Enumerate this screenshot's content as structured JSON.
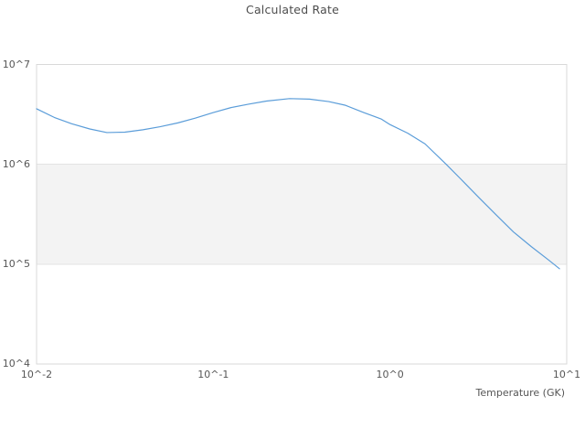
{
  "page": {
    "background": "#ffffff"
  },
  "chart_data": {
    "type": "line",
    "title": "Calculated Rate",
    "xlabel": "Temperature (GK)",
    "ylabel": "",
    "x_scale": "log",
    "y_scale": "log",
    "xlim": [
      0.01,
      10
    ],
    "ylim": [
      10000,
      10000000
    ],
    "grid": "horizontal-decade-lines",
    "legend": "none",
    "x_ticks": [
      {
        "label": "10^-2",
        "value": 0.01
      },
      {
        "label": "10^-1",
        "value": 0.1
      },
      {
        "label": "10^0",
        "value": 1
      },
      {
        "label": "10^1",
        "value": 10
      }
    ],
    "y_ticks": [
      {
        "label": "10^4",
        "value": 10000
      },
      {
        "label": "10^5",
        "value": 100000
      },
      {
        "label": "10^6",
        "value": 1000000
      },
      {
        "label": "10^7",
        "value": 10000000
      }
    ],
    "shaded_band": {
      "y_from": 100000,
      "y_to": 1000000,
      "fill": "#f3f3f3",
      "edge": "#e3e3e3"
    },
    "series": [
      {
        "name": "calculated-rate",
        "color": "#5b9dd9",
        "points": [
          [
            0.01,
            3600000
          ],
          [
            0.0126,
            2950000
          ],
          [
            0.0158,
            2550000
          ],
          [
            0.02,
            2260000
          ],
          [
            0.025,
            2080000
          ],
          [
            0.0316,
            2100000
          ],
          [
            0.04,
            2220000
          ],
          [
            0.05,
            2380000
          ],
          [
            0.063,
            2600000
          ],
          [
            0.079,
            2900000
          ],
          [
            0.1,
            3300000
          ],
          [
            0.126,
            3700000
          ],
          [
            0.158,
            4000000
          ],
          [
            0.2,
            4300000
          ],
          [
            0.27,
            4550000
          ],
          [
            0.35,
            4500000
          ],
          [
            0.45,
            4250000
          ],
          [
            0.56,
            3900000
          ],
          [
            0.71,
            3300000
          ],
          [
            0.89,
            2850000
          ],
          [
            1.0,
            2500000
          ],
          [
            1.26,
            2050000
          ],
          [
            1.58,
            1600000
          ],
          [
            2.08,
            1000000
          ],
          [
            2.5,
            720000
          ],
          [
            3.2,
            460000
          ],
          [
            4.0,
            310000
          ],
          [
            5.0,
            210000
          ],
          [
            6.3,
            150000
          ],
          [
            7.9,
            110000
          ],
          [
            9.1,
            90000
          ]
        ]
      }
    ],
    "colors": {
      "plot_border": "#d9d9d9",
      "grid_line": "#e3e3e3",
      "tick_text": "#565656",
      "title_text": "#4d4d4d",
      "line": "#5b9dd9"
    }
  }
}
